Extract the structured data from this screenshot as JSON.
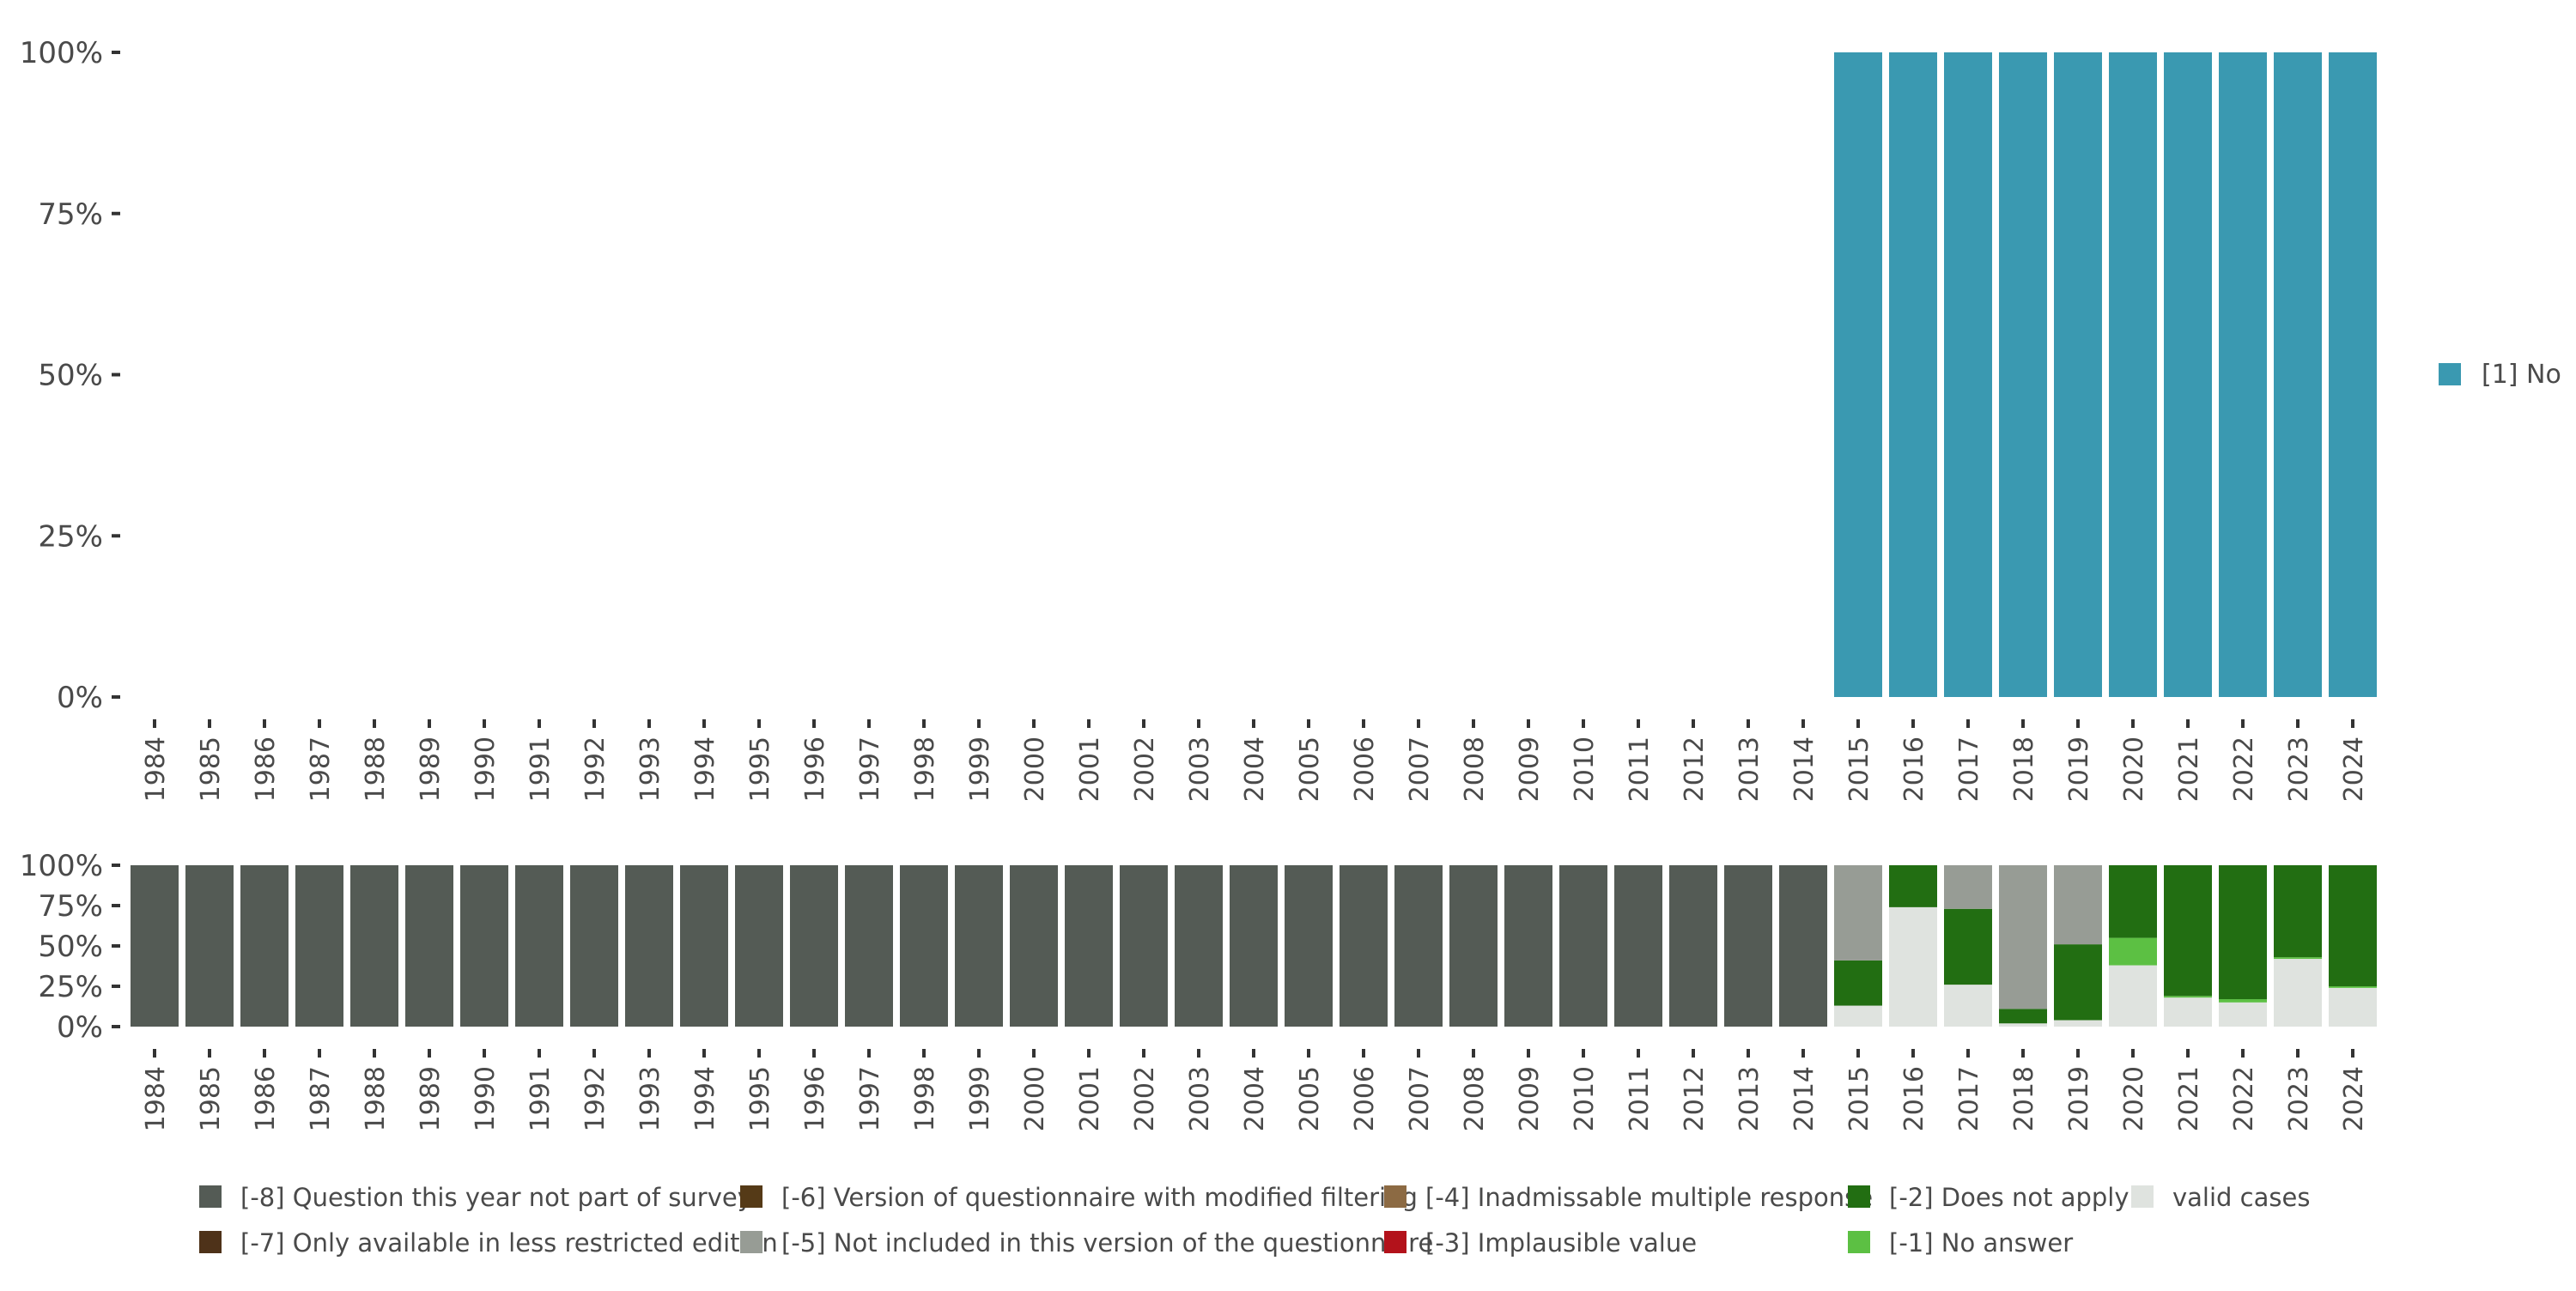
{
  "chart_data": [
    {
      "type": "bar",
      "stacked": true,
      "normalized": true,
      "categories": [
        "1984",
        "1985",
        "1986",
        "1987",
        "1988",
        "1989",
        "1990",
        "1991",
        "1992",
        "1993",
        "1994",
        "1995",
        "1996",
        "1997",
        "1998",
        "1999",
        "2000",
        "2001",
        "2002",
        "2003",
        "2004",
        "2005",
        "2006",
        "2007",
        "2008",
        "2009",
        "2010",
        "2011",
        "2012",
        "2013",
        "2014",
        "2015",
        "2016",
        "2017",
        "2018",
        "2019",
        "2020",
        "2021",
        "2022",
        "2023",
        "2024"
      ],
      "y_tick_labels": [
        "0%",
        "25%",
        "50%",
        "75%",
        "100%"
      ],
      "ylim": [
        0,
        1
      ],
      "legend_position": "right",
      "series": [
        {
          "name": "[1] No",
          "color": "#3a99b1",
          "values": [
            null,
            null,
            null,
            null,
            null,
            null,
            null,
            null,
            null,
            null,
            null,
            null,
            null,
            null,
            null,
            null,
            null,
            null,
            null,
            null,
            null,
            null,
            null,
            null,
            null,
            null,
            null,
            null,
            null,
            null,
            null,
            1,
            1,
            1,
            1,
            1,
            1,
            1,
            1,
            1,
            1
          ]
        }
      ]
    },
    {
      "type": "bar",
      "stacked": true,
      "normalized": true,
      "categories": [
        "1984",
        "1985",
        "1986",
        "1987",
        "1988",
        "1989",
        "1990",
        "1991",
        "1992",
        "1993",
        "1994",
        "1995",
        "1996",
        "1997",
        "1998",
        "1999",
        "2000",
        "2001",
        "2002",
        "2003",
        "2004",
        "2005",
        "2006",
        "2007",
        "2008",
        "2009",
        "2010",
        "2011",
        "2012",
        "2013",
        "2014",
        "2015",
        "2016",
        "2017",
        "2018",
        "2019",
        "2020",
        "2021",
        "2022",
        "2023",
        "2024"
      ],
      "y_tick_labels": [
        "0%",
        "25%",
        "50%",
        "75%",
        "100%"
      ],
      "ylim": [
        0,
        1
      ],
      "legend_position": "bottom",
      "series": [
        {
          "name": "valid cases",
          "color": "#dfe3df",
          "values": [
            0,
            0,
            0,
            0,
            0,
            0,
            0,
            0,
            0,
            0,
            0,
            0,
            0,
            0,
            0,
            0,
            0,
            0,
            0,
            0,
            0,
            0,
            0,
            0,
            0,
            0,
            0,
            0,
            0,
            0,
            0,
            0.13,
            0.74,
            0.26,
            0.02,
            0.04,
            0.38,
            0.18,
            0.15,
            0.42,
            0.24
          ]
        },
        {
          "name": "[-1] No answer",
          "color": "#5cc043",
          "values": [
            0,
            0,
            0,
            0,
            0,
            0,
            0,
            0,
            0,
            0,
            0,
            0,
            0,
            0,
            0,
            0,
            0,
            0,
            0,
            0,
            0,
            0,
            0,
            0,
            0,
            0,
            0,
            0,
            0,
            0,
            0,
            0,
            0,
            0,
            0,
            0,
            0.17,
            0.01,
            0.02,
            0.01,
            0.01
          ]
        },
        {
          "name": "[-2] Does not apply",
          "color": "#226e12",
          "values": [
            0,
            0,
            0,
            0,
            0,
            0,
            0,
            0,
            0,
            0,
            0,
            0,
            0,
            0,
            0,
            0,
            0,
            0,
            0,
            0,
            0,
            0,
            0,
            0,
            0,
            0,
            0,
            0,
            0,
            0,
            0,
            0.28,
            0.26,
            0.47,
            0.09,
            0.47,
            0.45,
            0.81,
            0.83,
            0.57,
            0.75
          ]
        },
        {
          "name": "[-3] Implausible value",
          "color": "#b3121b",
          "values": [
            0,
            0,
            0,
            0,
            0,
            0,
            0,
            0,
            0,
            0,
            0,
            0,
            0,
            0,
            0,
            0,
            0,
            0,
            0,
            0,
            0,
            0,
            0,
            0,
            0,
            0,
            0,
            0,
            0,
            0,
            0,
            0,
            0,
            0,
            0,
            0,
            0,
            0,
            0,
            0,
            0
          ]
        },
        {
          "name": "[-4] Inadmissable multiple response",
          "color": "#8c6a43",
          "values": [
            0,
            0,
            0,
            0,
            0,
            0,
            0,
            0,
            0,
            0,
            0,
            0,
            0,
            0,
            0,
            0,
            0,
            0,
            0,
            0,
            0,
            0,
            0,
            0,
            0,
            0,
            0,
            0,
            0,
            0,
            0,
            0,
            0,
            0,
            0,
            0,
            0,
            0,
            0,
            0,
            0
          ]
        },
        {
          "name": "[-5] Not included in this version of the questionnaire",
          "color": "#979c95",
          "values": [
            0,
            0,
            0,
            0,
            0,
            0,
            0,
            0,
            0,
            0,
            0,
            0,
            0,
            0,
            0,
            0,
            0,
            0,
            0,
            0,
            0,
            0,
            0,
            0,
            0,
            0,
            0,
            0,
            0,
            0,
            0,
            0.59,
            0,
            0.27,
            0.89,
            0.49,
            0,
            0,
            0,
            0,
            0
          ]
        },
        {
          "name": "[-6] Version of questionnaire with modified filtering",
          "color": "#553a17",
          "values": [
            0,
            0,
            0,
            0,
            0,
            0,
            0,
            0,
            0,
            0,
            0,
            0,
            0,
            0,
            0,
            0,
            0,
            0,
            0,
            0,
            0,
            0,
            0,
            0,
            0,
            0,
            0,
            0,
            0,
            0,
            0,
            0,
            0,
            0,
            0,
            0,
            0,
            0,
            0,
            0,
            0
          ]
        },
        {
          "name": "[-7] Only available in less restricted edition",
          "color": "#4e3219",
          "values": [
            0,
            0,
            0,
            0,
            0,
            0,
            0,
            0,
            0,
            0,
            0,
            0,
            0,
            0,
            0,
            0,
            0,
            0,
            0,
            0,
            0,
            0,
            0,
            0,
            0,
            0,
            0,
            0,
            0,
            0,
            0,
            0,
            0,
            0,
            0,
            0,
            0,
            0,
            0,
            0,
            0
          ]
        },
        {
          "name": "[-8] Question this year not part of survey",
          "color": "#545b55",
          "values": [
            1,
            1,
            1,
            1,
            1,
            1,
            1,
            1,
            1,
            1,
            1,
            1,
            1,
            1,
            1,
            1,
            1,
            1,
            1,
            1,
            1,
            1,
            1,
            1,
            1,
            1,
            1,
            1,
            1,
            1,
            1,
            0,
            0,
            0,
            0,
            0,
            0,
            0,
            0,
            0,
            0
          ]
        }
      ],
      "legend_order": [
        "[-8] Question this year not part of survey",
        "[-7] Only available in less restricted edition",
        "[-6] Version of questionnaire with modified filtering",
        "[-5] Not included in this version of the questionnaire",
        "[-4] Inadmissable multiple response",
        "[-3] Implausible value",
        "[-2] Does not apply",
        "[-1] No answer",
        "valid cases"
      ]
    }
  ]
}
